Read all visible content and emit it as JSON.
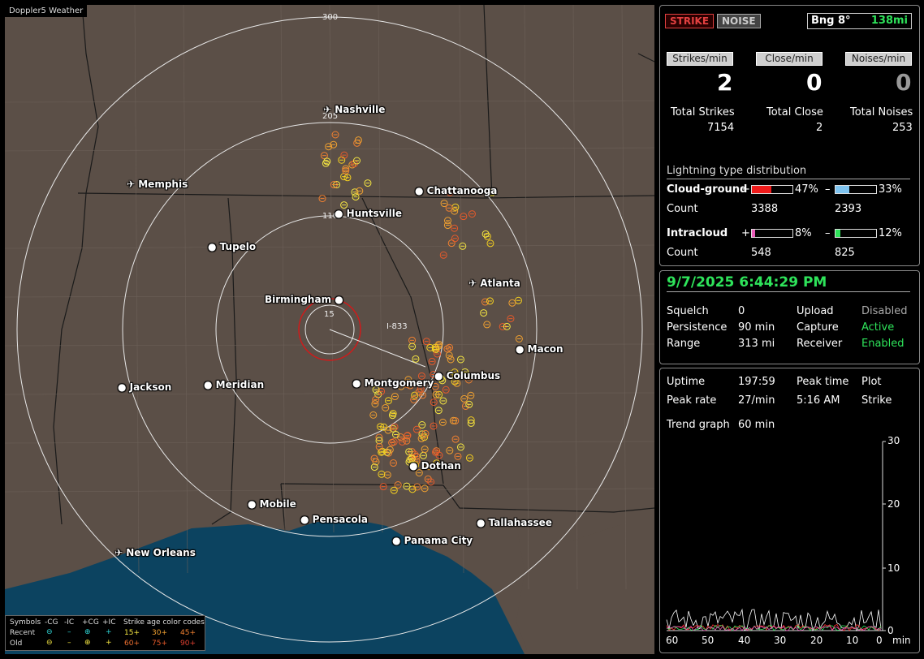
{
  "app": {
    "title": "Doppler5 Weather"
  },
  "map": {
    "ring_labels": [
      "300",
      "205",
      "110",
      "15"
    ],
    "highway_label": "I-833",
    "cities": [
      "Nashville",
      "Memphis",
      "Chattanooga",
      "Huntsville",
      "Tupelo",
      "Atlanta",
      "Birmingham",
      "Macon",
      "Jackson",
      "Meridian",
      "Montgomery",
      "Columbus",
      "Dothan",
      "Mobile",
      "Pensacola",
      "Tallahassee",
      "Panama City",
      "New Orleans"
    ],
    "colors": {
      "land": "#5b4f47",
      "water": "#0c4360",
      "rings": "#e8e8e8",
      "close_ring": "#d11a1a"
    }
  },
  "legend": {
    "symbols_label": "Symbols",
    "col_neg_cg": "-CG",
    "col_neg_ic": "-IC",
    "col_pos_cg": "+CG",
    "col_pos_ic": "+IC",
    "age_label": "Strike age color codes",
    "recent_label": "Recent",
    "old_label": "Old",
    "recent_ages": [
      "15+",
      "30+",
      "45+"
    ],
    "old_ages": [
      "60+",
      "75+",
      "90+"
    ]
  },
  "stats": {
    "strike_btn": "STRIKE",
    "noise_btn": "NOISE",
    "bearing": "Bng 8°",
    "distance": "138mi",
    "strikes_min_label": "Strikes/min",
    "close_min_label": "Close/min",
    "noises_min_label": "Noises/min",
    "strikes_min": "2",
    "close_min": "0",
    "noises_min": "0",
    "total_strikes_label": "Total Strikes",
    "total_close_label": "Total Close",
    "total_noises_label": "Total Noises",
    "total_strikes": "7154",
    "total_close": "2",
    "total_noises": "253",
    "dist_title": "Lightning type distribution",
    "cg_label": "Cloud-ground",
    "ic_label": "Intracloud",
    "count_label": "Count",
    "cg_pos_pct": "47%",
    "cg_neg_pct": "33%",
    "ic_pos_pct": "8%",
    "ic_neg_pct": "12%",
    "cg_pos_frac": 0.47,
    "cg_neg_frac": 0.33,
    "ic_pos_frac": 0.08,
    "ic_neg_frac": 0.12,
    "cg_pos_count": "3388",
    "cg_neg_count": "2393",
    "ic_pos_count": "548",
    "ic_neg_count": "825",
    "plus": "+",
    "minus": "–"
  },
  "status": {
    "datetime": "9/7/2025 6:44:29 PM",
    "squelch_label": "Squelch",
    "squelch": "0",
    "persistence_label": "Persistence",
    "persistence": "90 min",
    "range_label": "Range",
    "range": "313 mi",
    "upload_label": "Upload",
    "upload": "Disabled",
    "capture_label": "Capture",
    "capture": "Active",
    "receiver_label": "Receiver",
    "receiver": "Enabled"
  },
  "trend": {
    "uptime_label": "Uptime",
    "uptime": "197:59",
    "peak_time_label": "Peak time",
    "plot_label": "Plot",
    "peak_rate_label": "Peak rate",
    "peak_rate": "27/min",
    "peak_time": "5:16 AM",
    "plot": "Strike",
    "trend_label": "Trend graph",
    "trend_span": "60 min",
    "y_ticks": [
      "30",
      "20",
      "10",
      "0"
    ],
    "x_ticks": [
      "60",
      "50",
      "40",
      "30",
      "20",
      "10",
      "0"
    ],
    "x_unit": "min"
  }
}
